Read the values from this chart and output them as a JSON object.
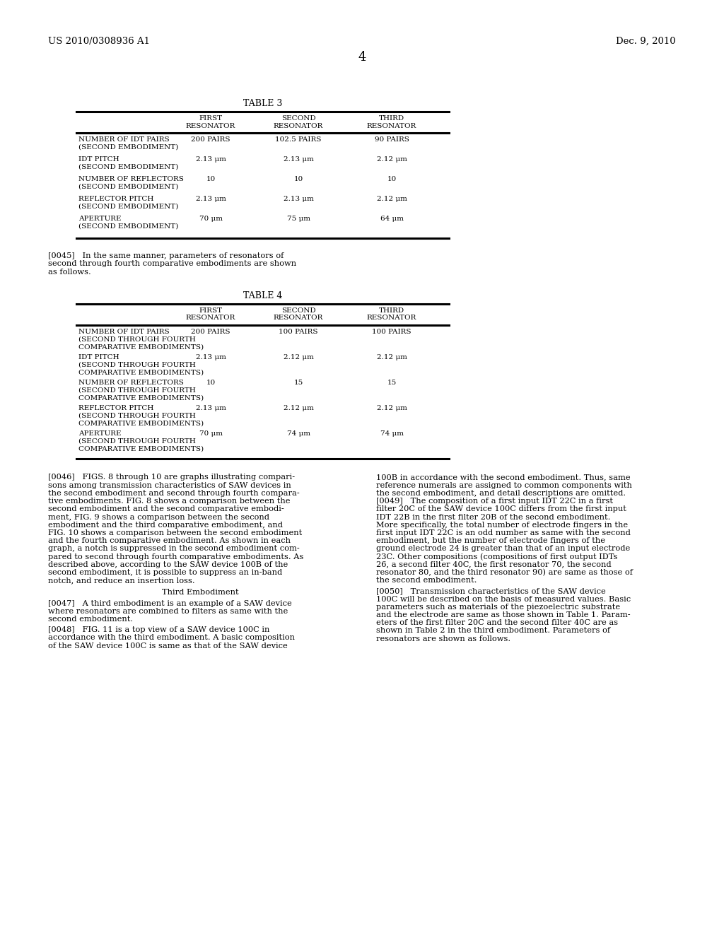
{
  "background_color": "#ffffff",
  "header_left": "US 2010/0308936 A1",
  "header_right": "Dec. 9, 2010",
  "page_number": "4",
  "table3_title": "TABLE 3",
  "table4_title": "TABLE 4",
  "table3_rows": [
    [
      "NUMBER OF IDT PAIRS",
      "(SECOND EMBODIMENT)",
      "200 PAIRS",
      "102.5 PAIRS",
      "90 PAIRS"
    ],
    [
      "IDT PITCH",
      "(SECOND EMBODIMENT)",
      "2.13 μm",
      "2.13 μm",
      "2.12 μm"
    ],
    [
      "NUMBER OF REFLECTORS",
      "(SECOND EMBODIMENT)",
      "10",
      "10",
      "10"
    ],
    [
      "REFLECTOR PITCH",
      "(SECOND EMBODIMENT)",
      "2.13 μm",
      "2.13 μm",
      "2.12 μm"
    ],
    [
      "APERTURE",
      "(SECOND EMBODIMENT)",
      "70 μm",
      "75 μm",
      "64 μm"
    ]
  ],
  "table4_rows": [
    [
      "NUMBER OF IDT PAIRS",
      "(SECOND THROUGH FOURTH",
      "COMPARATIVE EMBODIMENTS)",
      "200 PAIRS",
      "100 PAIRS",
      "100 PAIRS"
    ],
    [
      "IDT PITCH",
      "(SECOND THROUGH FOURTH",
      "COMPARATIVE EMBODIMENTS)",
      "2.13 μm",
      "2.12 μm",
      "2.12 μm"
    ],
    [
      "NUMBER OF REFLECTORS",
      "(SECOND THROUGH FOURTH",
      "COMPARATIVE EMBODIMENTS)",
      "10",
      "15",
      "15"
    ],
    [
      "REFLECTOR PITCH",
      "(SECOND THROUGH FOURTH",
      "COMPARATIVE EMBODIMENTS)",
      "2.13 μm",
      "2.12 μm",
      "2.12 μm"
    ],
    [
      "APERTURE",
      "(SECOND THROUGH FOURTH",
      "COMPARATIVE EMBODIMENTS)",
      "70 μm",
      "74 μm",
      "74 μm"
    ]
  ],
  "para_0045_lines": [
    "[0045]   In the same manner, parameters of resonators of",
    "second through fourth comparative embodiments are shown",
    "as follows."
  ],
  "para_0046_left_lines": [
    "[0046]   FIGS. 8 through 10 are graphs illustrating compari-",
    "sons among transmission characteristics of SAW devices in",
    "the second embodiment and second through fourth compara-",
    "tive embodiments. FIG. 8 shows a comparison between the",
    "second embodiment and the second comparative embodi-",
    "ment, FIG. 9 shows a comparison between the second",
    "embodiment and the third comparative embodiment, and",
    "FIG. 10 shows a comparison between the second embodiment",
    "and the fourth comparative embodiment. As shown in each",
    "graph, a notch is suppressed in the second embodiment com-",
    "pared to second through fourth comparative embodiments. As",
    "described above, according to the SAW device 100B of the",
    "second embodiment, it is possible to suppress an in-band",
    "notch, and reduce an insertion loss."
  ],
  "para_third_emb": "Third Embodiment",
  "para_0047_lines": [
    "[0047]   A third embodiment is an example of a SAW device",
    "where resonators are combined to filters as same with the",
    "second embodiment."
  ],
  "para_0048_lines": [
    "[0048]   FIG. 11 is a top view of a SAW device 100C in",
    "accordance with the third embodiment. A basic composition",
    "of the SAW device 100C is same as that of the SAW device"
  ],
  "para_0046_right_lines": [
    "100B in accordance with the second embodiment. Thus, same",
    "reference numerals are assigned to common components with",
    "the second embodiment, and detail descriptions are omitted.",
    "[0049]   The composition of a first input IDT 22C in a first",
    "filter 20C of the SAW device 100C differs from the first input",
    "IDT 22B in the first filter 20B of the second embodiment.",
    "More specifically, the total number of electrode fingers in the",
    "first input IDT 22C is an odd number as same with the second",
    "embodiment, but the number of electrode fingers of the",
    "ground electrode 24 is greater than that of an input electrode",
    "23C. Other compositions (compositions of first output IDTs",
    "26, a second filter 40C, the first resonator 70, the second",
    "resonator 80, and the third resonator 90) are same as those of",
    "the second embodiment."
  ],
  "para_0050_right_lines": [
    "[0050]   Transmission characteristics of the SAW device",
    "100C will be described on the basis of measured values. Basic",
    "parameters such as materials of the piezoelectric substrate",
    "and the electrode are same as those shown in Table 1. Param-",
    "eters of the first filter 20C and the second filter 40C are as",
    "shown in Table 2 in the third embodiment. Parameters of",
    "resonators are shown as follows."
  ]
}
